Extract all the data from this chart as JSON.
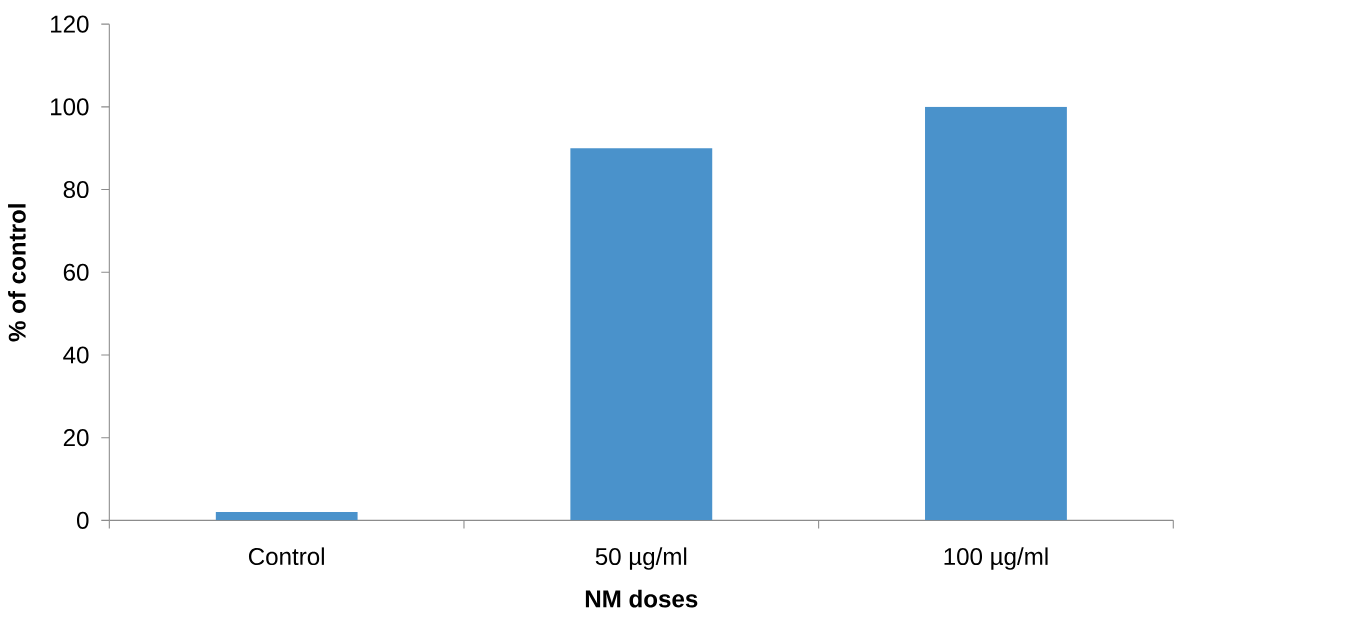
{
  "chart_data": {
    "type": "bar",
    "xlabel": "NM doses",
    "ylabel": "% of control",
    "categories": [
      "Control",
      "50 µg/ml",
      "100 µg/ml"
    ],
    "values": [
      2,
      90,
      100
    ],
    "color": "#4a92cb",
    "ylim": [
      0,
      120
    ],
    "yticks": [
      0,
      20,
      40,
      60,
      80,
      100,
      120
    ]
  }
}
